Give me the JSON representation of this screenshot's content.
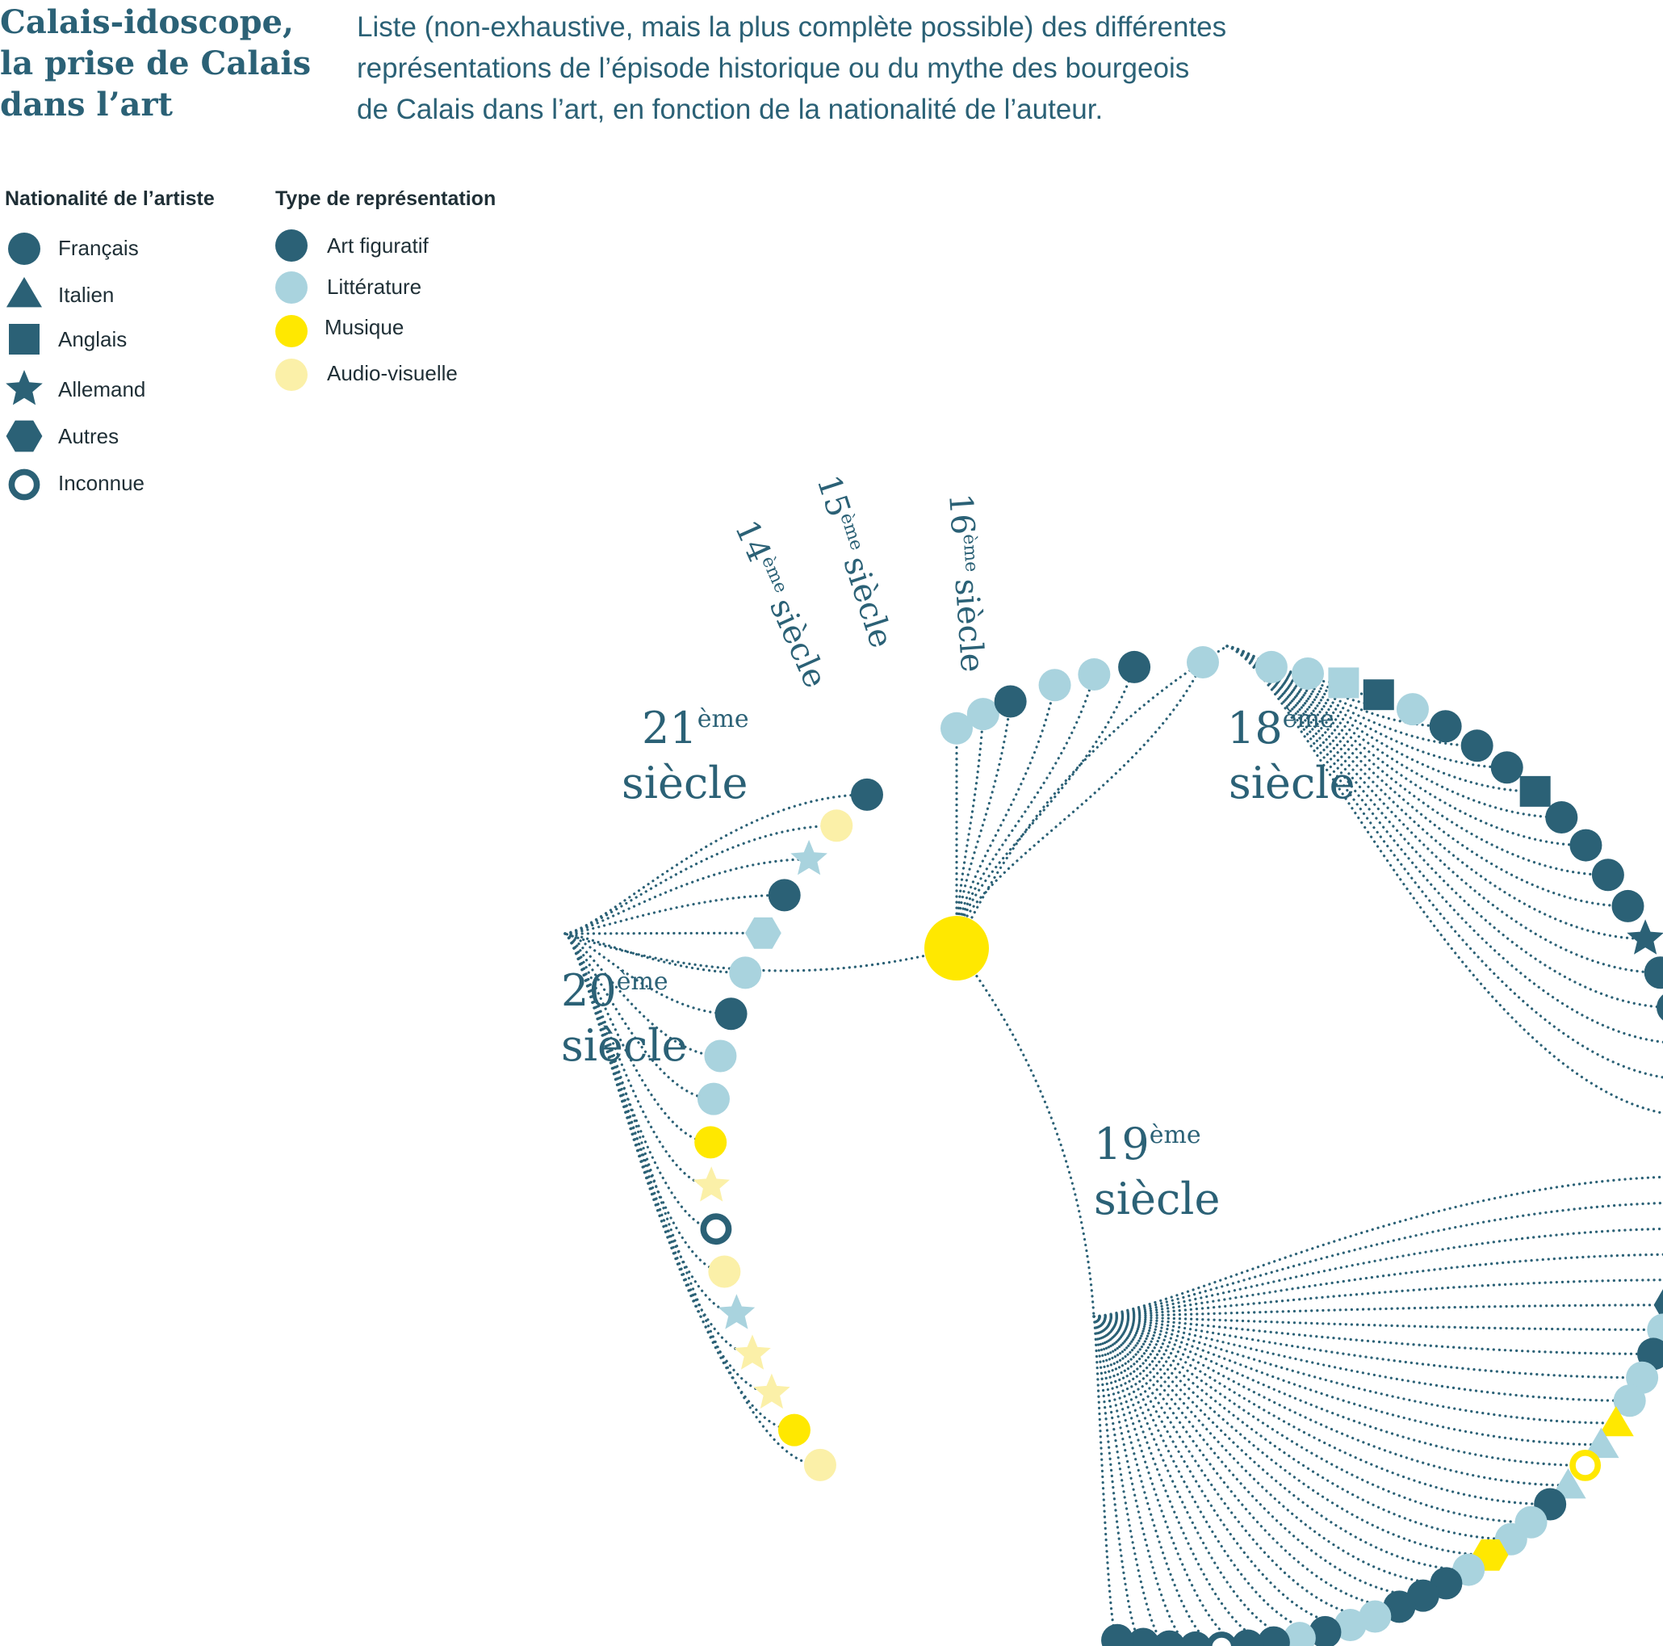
{
  "title_lines": [
    "Calais-idoscope,",
    "la prise de Calais",
    "dans l’art"
  ],
  "intro_lines": [
    "Liste (non-exhaustive, mais la plus complète possible) des différentes",
    "représentations de l’épisode historique ou du mythe des bourgeois",
    "de Calais dans l’art, en fonction de la nationalité de l’auteur."
  ],
  "legend": {
    "nationality_title": "Nationalité de l’artiste",
    "nationalities": [
      {
        "label": "Français",
        "shape": "circle"
      },
      {
        "label": "Italien",
        "shape": "triangle"
      },
      {
        "label": "Anglais",
        "shape": "square"
      },
      {
        "label": "Allemand",
        "shape": "star"
      },
      {
        "label": "Autres",
        "shape": "hexagon"
      },
      {
        "label": "Inconnue",
        "shape": "ring"
      }
    ],
    "type_title": "Type de représentation",
    "types": [
      {
        "label": "Art figuratif",
        "color": "#2b6176"
      },
      {
        "label": "Littérature",
        "color": "#a9d3de"
      },
      {
        "label": "Musique",
        "color": "#ffe800"
      },
      {
        "label": "Audio-visuelle",
        "color": "#fbf0a8"
      }
    ]
  },
  "colors": {
    "figuratif": "#2b6176",
    "litterature": "#a9d3de",
    "musique": "#ffe800",
    "audiovisuel": "#fbf0a8",
    "root": "#ffe800",
    "link": "#2b6176",
    "text": "#2b6176"
  },
  "centuries": {
    "c14": {
      "num": "14",
      "sup": "ème",
      "word": "siècle"
    },
    "c15": {
      "num": "15",
      "sup": "ème",
      "word": "siècle"
    },
    "c16": {
      "num": "16",
      "sup": "ème",
      "word": "siècle"
    },
    "c18": {
      "num": "18",
      "sup": "ème",
      "word": "siècle"
    },
    "c19": {
      "num": "19",
      "sup": "ème",
      "word": "siècle"
    },
    "c20": {
      "num": "20",
      "sup": "ème",
      "word": "siècle"
    },
    "c21": {
      "num": "21",
      "sup": "ème",
      "word": "siècle"
    }
  },
  "works": {
    "c14": [
      {
        "shape": "circle",
        "type": "litterature"
      },
      {
        "shape": "circle",
        "type": "litterature"
      },
      {
        "shape": "circle",
        "type": "figuratif"
      }
    ],
    "c15": [
      {
        "shape": "circle",
        "type": "litterature"
      },
      {
        "shape": "circle",
        "type": "litterature"
      },
      {
        "shape": "circle",
        "type": "figuratif"
      }
    ],
    "c16": [
      {
        "shape": "circle",
        "type": "litterature"
      }
    ],
    "c18": [
      {
        "shape": "circle",
        "type": "litterature"
      },
      {
        "shape": "circle",
        "type": "litterature"
      },
      {
        "shape": "square",
        "type": "litterature"
      },
      {
        "shape": "square",
        "type": "figuratif"
      },
      {
        "shape": "circle",
        "type": "litterature"
      },
      {
        "shape": "circle",
        "type": "figuratif"
      },
      {
        "shape": "circle",
        "type": "figuratif"
      },
      {
        "shape": "circle",
        "type": "figuratif"
      },
      {
        "shape": "square",
        "type": "figuratif"
      },
      {
        "shape": "circle",
        "type": "figuratif"
      },
      {
        "shape": "circle",
        "type": "figuratif"
      },
      {
        "shape": "circle",
        "type": "figuratif"
      },
      {
        "shape": "circle",
        "type": "figuratif"
      },
      {
        "shape": "star",
        "type": "figuratif"
      },
      {
        "shape": "circle",
        "type": "figuratif"
      },
      {
        "shape": "circle",
        "type": "figuratif"
      },
      {
        "shape": "square",
        "type": "litterature"
      },
      {
        "shape": "square",
        "type": "figuratif"
      },
      {
        "shape": "circle",
        "type": "litterature"
      }
    ],
    "c19": [
      {
        "shape": "circle",
        "type": "figuratif"
      },
      {
        "shape": "square",
        "type": "figuratif"
      },
      {
        "shape": "square",
        "type": "figuratif"
      },
      {
        "shape": "square",
        "type": "figuratif"
      },
      {
        "shape": "circle",
        "type": "figuratif"
      },
      {
        "shape": "hexagon",
        "type": "figuratif"
      },
      {
        "shape": "circle",
        "type": "litterature"
      },
      {
        "shape": "circle",
        "type": "figuratif"
      },
      {
        "shape": "circle",
        "type": "litterature"
      },
      {
        "shape": "circle",
        "type": "litterature"
      },
      {
        "shape": "triangle",
        "type": "musique"
      },
      {
        "shape": "triangle",
        "type": "litterature"
      },
      {
        "shape": "ring",
        "type": "musique"
      },
      {
        "shape": "triangle",
        "type": "litterature"
      },
      {
        "shape": "circle",
        "type": "figuratif"
      },
      {
        "shape": "circle",
        "type": "litterature"
      },
      {
        "shape": "circle",
        "type": "litterature"
      },
      {
        "shape": "hexagon",
        "type": "musique"
      },
      {
        "shape": "circle",
        "type": "litterature"
      },
      {
        "shape": "circle",
        "type": "figuratif"
      },
      {
        "shape": "circle",
        "type": "figuratif"
      },
      {
        "shape": "circle",
        "type": "figuratif"
      },
      {
        "shape": "circle",
        "type": "litterature"
      },
      {
        "shape": "circle",
        "type": "litterature"
      },
      {
        "shape": "circle",
        "type": "figuratif"
      },
      {
        "shape": "circle",
        "type": "litterature"
      },
      {
        "shape": "circle",
        "type": "figuratif"
      },
      {
        "shape": "circle",
        "type": "figuratif"
      },
      {
        "shape": "ring",
        "type": "figuratif"
      },
      {
        "shape": "circle",
        "type": "figuratif"
      },
      {
        "shape": "circle",
        "type": "figuratif"
      },
      {
        "shape": "circle",
        "type": "figuratif"
      },
      {
        "shape": "circle",
        "type": "figuratif"
      }
    ],
    "c20": [
      {
        "shape": "circle",
        "type": "audiovisuel"
      },
      {
        "shape": "circle",
        "type": "musique"
      },
      {
        "shape": "star",
        "type": "audiovisuel"
      },
      {
        "shape": "star",
        "type": "audiovisuel"
      },
      {
        "shape": "star",
        "type": "litterature"
      },
      {
        "shape": "circle",
        "type": "audiovisuel"
      },
      {
        "shape": "ring",
        "type": "figuratif"
      },
      {
        "shape": "star",
        "type": "audiovisuel"
      },
      {
        "shape": "circle",
        "type": "musique"
      },
      {
        "shape": "circle",
        "type": "litterature"
      },
      {
        "shape": "circle",
        "type": "litterature"
      },
      {
        "shape": "circle",
        "type": "figuratif"
      },
      {
        "shape": "circle",
        "type": "litterature"
      },
      {
        "shape": "hexagon",
        "type": "litterature"
      },
      {
        "shape": "circle",
        "type": "figuratif"
      },
      {
        "shape": "star",
        "type": "litterature"
      },
      {
        "shape": "circle",
        "type": "audiovisuel"
      },
      {
        "shape": "circle",
        "type": "figuratif"
      }
    ]
  }
}
